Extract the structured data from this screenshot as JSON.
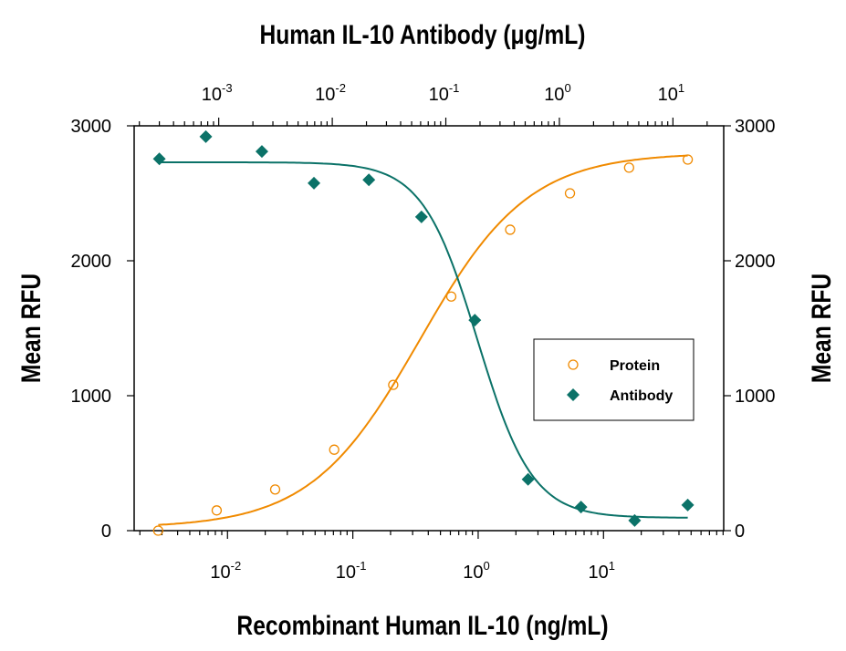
{
  "chart_data": {
    "type": "scatter",
    "title": "Human IL-10 Antibody (μg/mL)",
    "xlabel": "Recombinant Human IL-10 (ng/mL)",
    "x2label": "Human IL-10 Antibody (μg/mL)",
    "ylabel": "Mean RFU",
    "y2label": "Mean RFU",
    "xscale": "log",
    "x2scale": "log",
    "xlim": [
      0.0018,
      91
    ],
    "x2lim": [
      0.00018,
      28
    ],
    "ylim": [
      0,
      3000
    ],
    "xticks": [
      {
        "base": "10",
        "exp": "-2"
      },
      {
        "base": "10",
        "exp": "-1"
      },
      {
        "base": "10",
        "exp": "0"
      },
      {
        "base": "10",
        "exp": "1"
      }
    ],
    "x2ticks": [
      {
        "base": "10",
        "exp": "-3"
      },
      {
        "base": "10",
        "exp": "-2"
      },
      {
        "base": "10",
        "exp": "-1"
      },
      {
        "base": "10",
        "exp": "0"
      },
      {
        "base": "10",
        "exp": "1"
      }
    ],
    "yticks": [
      "0",
      "1000",
      "2000",
      "3000"
    ],
    "grid": false,
    "legend_position": "center-right",
    "series": [
      {
        "name": "Protein",
        "axis": "bottom",
        "marker": "open-circle",
        "color": "#f08a00",
        "x": [
          0.0028,
          0.0082,
          0.024,
          0.071,
          0.21,
          0.61,
          1.8,
          5.4,
          16,
          47
        ],
        "y": [
          0,
          150,
          305,
          600,
          1080,
          1735,
          2230,
          2500,
          2690,
          2750
        ],
        "fit": {
          "bottom": 20,
          "top": 2800,
          "ec50": 0.34,
          "hill": 1.0
        }
      },
      {
        "name": "Antibody",
        "axis": "top",
        "marker": "filled-diamond",
        "color": "#0b7268",
        "x": [
          0.0003,
          0.00077,
          0.0024,
          0.0069,
          0.021,
          0.061,
          0.18,
          0.53,
          1.55,
          4.6,
          13.5
        ],
        "y": [
          2755,
          2920,
          2810,
          2575,
          2600,
          2325,
          1560,
          380,
          175,
          75,
          190
        ],
        "fit": {
          "bottom": 95,
          "top": 2730,
          "ec50": 0.19,
          "hill": 1.8
        }
      }
    ]
  }
}
